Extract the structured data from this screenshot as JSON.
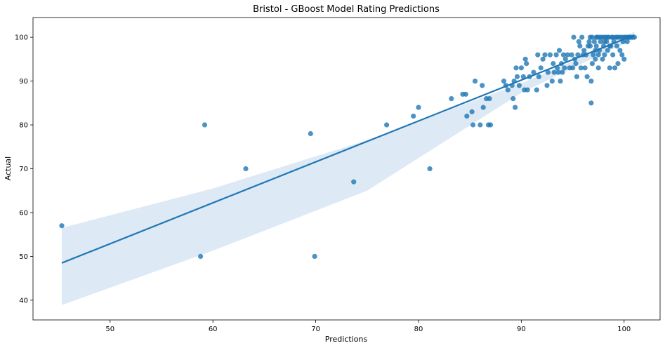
{
  "chart_data": {
    "type": "scatter",
    "title": "Bristol - GBoost Model Rating Predictions",
    "xlabel": "Predictions",
    "ylabel": "Actual",
    "xlim": [
      42.5,
      103.5
    ],
    "ylim": [
      35.5,
      104.5
    ],
    "xticks": [
      50,
      60,
      70,
      80,
      90,
      100
    ],
    "yticks": [
      40,
      50,
      60,
      70,
      80,
      90,
      100
    ],
    "grid": false,
    "colors": {
      "points": "#1f77b4",
      "line": "#1f77b4",
      "band": "#c6dbef"
    },
    "regression": {
      "x": [
        45.3,
        101.0
      ],
      "y": [
        48.5,
        100.5
      ]
    },
    "ci_band": {
      "x": [
        45.3,
        60,
        75,
        90,
        95,
        101.0
      ],
      "upper": [
        56.5,
        65.5,
        76.5,
        89.5,
        94.5,
        101.3
      ],
      "lower": [
        38.9,
        51.3,
        65.0,
        87.3,
        93.0,
        99.6
      ]
    },
    "points": [
      [
        45.3,
        57
      ],
      [
        58.8,
        50
      ],
      [
        59.2,
        80
      ],
      [
        63.2,
        70
      ],
      [
        69.5,
        78
      ],
      [
        69.9,
        50
      ],
      [
        73.7,
        67
      ],
      [
        76.9,
        80
      ],
      [
        79.5,
        82
      ],
      [
        80.0,
        84
      ],
      [
        81.1,
        70
      ],
      [
        83.2,
        86
      ],
      [
        84.3,
        87
      ],
      [
        84.6,
        87
      ],
      [
        84.7,
        82
      ],
      [
        85.2,
        83
      ],
      [
        85.3,
        80
      ],
      [
        85.5,
        90
      ],
      [
        86.0,
        80
      ],
      [
        86.2,
        89
      ],
      [
        86.3,
        84
      ],
      [
        86.6,
        86
      ],
      [
        86.8,
        80
      ],
      [
        86.9,
        86
      ],
      [
        87.0,
        80
      ],
      [
        88.3,
        90
      ],
      [
        88.5,
        89
      ],
      [
        88.7,
        88
      ],
      [
        89.1,
        89
      ],
      [
        89.2,
        86
      ],
      [
        89.3,
        90
      ],
      [
        89.4,
        84
      ],
      [
        89.6,
        91
      ],
      [
        89.5,
        93
      ],
      [
        89.8,
        89
      ],
      [
        90.0,
        93
      ],
      [
        90.2,
        91
      ],
      [
        90.3,
        88
      ],
      [
        90.4,
        95
      ],
      [
        90.6,
        88
      ],
      [
        90.5,
        94
      ],
      [
        90.8,
        91
      ],
      [
        91.2,
        92
      ],
      [
        91.5,
        88
      ],
      [
        91.7,
        91
      ],
      [
        91.6,
        96
      ],
      [
        91.9,
        93
      ],
      [
        92.1,
        95
      ],
      [
        92.5,
        89
      ],
      [
        92.3,
        96
      ],
      [
        92.6,
        92
      ],
      [
        92.8,
        96
      ],
      [
        93.0,
        90
      ],
      [
        93.1,
        94
      ],
      [
        93.2,
        92
      ],
      [
        93.4,
        96
      ],
      [
        93.5,
        93
      ],
      [
        93.6,
        92
      ],
      [
        93.7,
        97
      ],
      [
        93.8,
        90
      ],
      [
        93.9,
        94
      ],
      [
        94.0,
        92
      ],
      [
        94.1,
        96
      ],
      [
        94.2,
        93
      ],
      [
        94.3,
        95
      ],
      [
        94.5,
        96
      ],
      [
        94.7,
        93
      ],
      [
        94.9,
        96
      ],
      [
        95.0,
        93
      ],
      [
        95.1,
        100
      ],
      [
        95.2,
        95
      ],
      [
        95.3,
        94
      ],
      [
        95.4,
        91
      ],
      [
        95.5,
        96
      ],
      [
        95.6,
        99
      ],
      [
        95.7,
        98
      ],
      [
        95.8,
        93
      ],
      [
        95.9,
        100
      ],
      [
        96.0,
        96
      ],
      [
        96.1,
        97
      ],
      [
        96.2,
        93
      ],
      [
        96.3,
        96
      ],
      [
        96.4,
        91
      ],
      [
        96.5,
        98
      ],
      [
        96.6,
        99
      ],
      [
        96.7,
        100
      ],
      [
        96.8,
        90
      ],
      [
        96.8,
        85
      ],
      [
        96.9,
        94
      ],
      [
        97.0,
        96
      ],
      [
        97.1,
        99
      ],
      [
        97.2,
        95
      ],
      [
        97.3,
        98
      ],
      [
        97.4,
        100
      ],
      [
        97.5,
        93
      ],
      [
        97.6,
        97
      ],
      [
        97.7,
        99
      ],
      [
        97.8,
        100
      ],
      [
        97.9,
        95
      ],
      [
        98.0,
        98
      ],
      [
        98.1,
        96
      ],
      [
        98.2,
        100
      ],
      [
        98.3,
        99
      ],
      [
        98.4,
        97
      ],
      [
        98.5,
        100
      ],
      [
        98.6,
        93
      ],
      [
        98.7,
        98
      ],
      [
        98.8,
        100
      ],
      [
        98.9,
        96
      ],
      [
        99.0,
        99
      ],
      [
        99.1,
        93
      ],
      [
        99.2,
        100
      ],
      [
        99.3,
        98
      ],
      [
        99.4,
        94
      ],
      [
        99.5,
        100
      ],
      [
        99.6,
        97
      ],
      [
        99.7,
        100
      ],
      [
        99.8,
        96
      ],
      [
        99.9,
        99
      ],
      [
        100.0,
        95
      ],
      [
        100.1,
        100
      ],
      [
        100.2,
        100
      ],
      [
        100.3,
        99
      ],
      [
        100.4,
        100
      ],
      [
        100.5,
        100
      ],
      [
        100.6,
        100
      ],
      [
        100.8,
        100
      ],
      [
        101.0,
        100
      ],
      [
        96.9,
        100
      ],
      [
        97.3,
        100
      ],
      [
        97.6,
        100
      ],
      [
        98.0,
        100
      ],
      [
        98.4,
        100
      ],
      [
        98.9,
        100
      ],
      [
        99.3,
        100
      ],
      [
        99.9,
        100
      ],
      [
        96.7,
        98
      ],
      [
        97.2,
        97
      ],
      [
        97.5,
        96
      ],
      [
        98.1,
        99
      ],
      [
        98.6,
        98
      ]
    ]
  }
}
